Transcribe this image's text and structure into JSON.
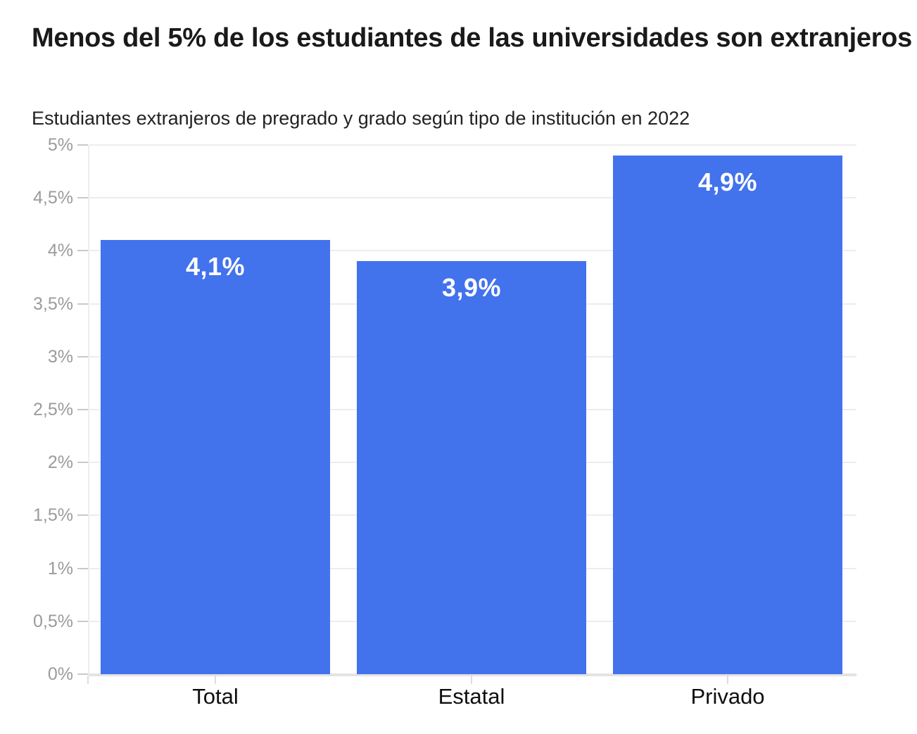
{
  "chart_data": {
    "type": "bar",
    "title": "Menos del 5% de los estudiantes de las universidades son extranjeros",
    "subtitle": "Estudiantes extranjeros de pregrado y grado según tipo de institución en 2022",
    "categories": [
      "Total",
      "Estatal",
      "Privado"
    ],
    "values": [
      4.1,
      3.9,
      4.9
    ],
    "value_labels": [
      "4,1%",
      "3,9%",
      "4,9%"
    ],
    "xlabel": "",
    "ylabel": "",
    "ylim": [
      0,
      5
    ],
    "y_ticks": [
      0,
      0.5,
      1,
      1.5,
      2,
      2.5,
      3,
      3.5,
      4,
      4.5,
      5
    ],
    "y_tick_labels": [
      "0%",
      "0,5%",
      "1%",
      "1,5%",
      "2%",
      "2,5%",
      "3%",
      "3,5%",
      "4%",
      "4,5%",
      "5%"
    ],
    "grid": "horizontal",
    "legend": "none",
    "colors": {
      "bar": "#4272ec",
      "value_label": "#ffffff",
      "axis_label": "#9b9b9b",
      "category_label": "#0f0f0f",
      "gridline": "#ededed",
      "title": "#1a1a1a"
    }
  }
}
